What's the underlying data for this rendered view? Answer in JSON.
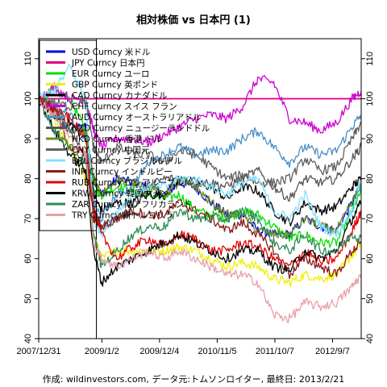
{
  "chart_data": {
    "type": "line",
    "title": "相対株価 vs 日本円 (1)",
    "caption": "作成: wildinvestors.com, データ元:トムソンロイター, 最終日: 2013/2/21",
    "ylim": [
      40,
      115
    ],
    "yticks": [
      40,
      50,
      60,
      70,
      80,
      90,
      100,
      110
    ],
    "xlim": [
      "2007-12-31",
      "2013-02-21"
    ],
    "xticks": [
      {
        "date": "2007-12-31",
        "label": "2007/12/31"
      },
      {
        "date": "2009-01-02",
        "label": "2009/1/2"
      },
      {
        "date": "2009-12-04",
        "label": "2009/12/4"
      },
      {
        "date": "2010-11-05",
        "label": "2010/11/5"
      },
      {
        "date": "2011-10-07",
        "label": "2011/10/7"
      },
      {
        "date": "2012-09-07",
        "label": "2012/9/7"
      }
    ],
    "x": [
      "2007-12-31",
      "2008-03-31",
      "2008-06-30",
      "2008-09-30",
      "2008-11-15",
      "2008-12-31",
      "2009-03-31",
      "2009-06-30",
      "2009-09-30",
      "2009-12-31",
      "2010-03-31",
      "2010-06-30",
      "2010-09-30",
      "2010-12-31",
      "2011-03-31",
      "2011-06-30",
      "2011-09-30",
      "2011-12-31",
      "2012-03-31",
      "2012-06-30",
      "2012-09-30",
      "2012-12-31",
      "2013-02-21"
    ],
    "reference_lines": [
      {
        "axis": "y",
        "value": 100,
        "color": "#d000d0"
      },
      {
        "axis": "x",
        "date": "2008-12-01",
        "color": "#000000"
      }
    ],
    "series": [
      {
        "name": "USD Curncy 米ドル",
        "color": "#0000e0",
        "values": [
          100,
          96,
          92,
          93,
          80,
          76,
          80,
          79,
          78,
          76,
          79,
          78,
          74,
          71,
          71,
          67,
          66,
          66,
          70,
          68,
          67,
          74,
          78
        ]
      },
      {
        "name": "JPY Curncy 日本円",
        "color": "#e0007f",
        "values": [
          100,
          100,
          100,
          100,
          100,
          100,
          100,
          100,
          100,
          100,
          100,
          100,
          100,
          100,
          100,
          100,
          100,
          100,
          100,
          100,
          100,
          100,
          100
        ]
      },
      {
        "name": "EUR Curncy ユーロ",
        "color": "#00e000",
        "values": [
          100,
          102,
          100,
          92,
          78,
          76,
          78,
          77,
          76,
          75,
          76,
          72,
          71,
          70,
          72,
          71,
          68,
          65,
          66,
          64,
          64,
          72,
          77
        ]
      },
      {
        "name": "GBP Curncy 英ポンド",
        "color": "#f0f000",
        "values": [
          100,
          95,
          88,
          80,
          66,
          60,
          62,
          62,
          62,
          62,
          63,
          62,
          60,
          58,
          59,
          58,
          55,
          54,
          56,
          55,
          56,
          61,
          64
        ]
      },
      {
        "name": "CAD Curncy カナダドル",
        "color": "#000000",
        "values": [
          100,
          96,
          94,
          90,
          76,
          72,
          74,
          74,
          76,
          76,
          80,
          79,
          78,
          75,
          78,
          77,
          72,
          69,
          74,
          72,
          73,
          78,
          80
        ]
      },
      {
        "name": "CHF Curncy スイス フラン",
        "color": "#d000d0",
        "values": [
          100,
          103,
          100,
          100,
          92,
          88,
          90,
          90,
          89,
          91,
          93,
          95,
          96,
          95,
          98,
          105,
          104,
          95,
          94,
          92,
          94,
          100,
          102
        ]
      },
      {
        "name": "AUD Curncy オーストラリアドル",
        "color": "#4a90c8",
        "values": [
          100,
          98,
          96,
          90,
          74,
          70,
          76,
          78,
          84,
          86,
          88,
          86,
          87,
          87,
          90,
          92,
          88,
          84,
          88,
          86,
          87,
          93,
          96
        ]
      },
      {
        "name": "NZD Curncy ニュージーランドドル",
        "color": "#555555",
        "values": [
          100,
          98,
          92,
          86,
          72,
          68,
          70,
          72,
          78,
          80,
          80,
          79,
          79,
          78,
          80,
          82,
          78,
          75,
          80,
          79,
          80,
          85,
          88
        ]
      },
      {
        "name": "HKD Curncy 香港 ドル",
        "color": "#6b8e23",
        "values": [
          100,
          96,
          92,
          92,
          80,
          76,
          80,
          79,
          78,
          76,
          79,
          78,
          74,
          71,
          71,
          67,
          66,
          66,
          70,
          68,
          67,
          74,
          79
        ]
      },
      {
        "name": "CNY Curncy 中国元",
        "color": "#606060",
        "values": [
          100,
          99,
          98,
          100,
          88,
          84,
          88,
          86,
          86,
          84,
          87,
          86,
          83,
          80,
          81,
          79,
          79,
          80,
          85,
          82,
          83,
          90,
          94
        ]
      },
      {
        "name": "BRL Curncy ブラジルレアル",
        "color": "#80e0ff",
        "values": [
          100,
          102,
          108,
          100,
          70,
          66,
          72,
          76,
          78,
          78,
          80,
          80,
          78,
          76,
          79,
          80,
          72,
          70,
          76,
          68,
          66,
          72,
          80
        ]
      },
      {
        "name": "INR Curncy インドルピー",
        "color": "#8b1a1a",
        "values": [
          100,
          97,
          88,
          86,
          70,
          68,
          70,
          72,
          71,
          71,
          74,
          72,
          70,
          67,
          69,
          66,
          62,
          56,
          60,
          58,
          56,
          62,
          64
        ]
      },
      {
        "name": "RUB Curncy ロシアルーブル",
        "color": "#e00000",
        "values": [
          100,
          97,
          95,
          90,
          72,
          66,
          60,
          63,
          65,
          63,
          66,
          65,
          62,
          62,
          64,
          63,
          60,
          58,
          62,
          59,
          60,
          67,
          72
        ]
      },
      {
        "name": "KRW Curncy 韓国ウォン",
        "color": "#000000",
        "values": [
          100,
          92,
          86,
          82,
          62,
          54,
          58,
          60,
          62,
          64,
          66,
          64,
          62,
          60,
          62,
          62,
          58,
          57,
          62,
          60,
          62,
          70,
          74
        ]
      },
      {
        "name": "ZAR Curncy 南アフリカランド",
        "color": "#2e8b57",
        "values": [
          100,
          92,
          88,
          84,
          66,
          58,
          62,
          66,
          68,
          68,
          72,
          70,
          70,
          70,
          72,
          70,
          64,
          62,
          66,
          62,
          62,
          66,
          65
        ]
      },
      {
        "name": "TRY Curncy 新トルコリラ",
        "color": "#e8a0a8",
        "values": [
          100,
          96,
          90,
          86,
          64,
          60,
          58,
          60,
          62,
          60,
          62,
          60,
          58,
          56,
          56,
          54,
          46,
          45,
          49,
          48,
          49,
          53,
          56
        ]
      }
    ]
  }
}
